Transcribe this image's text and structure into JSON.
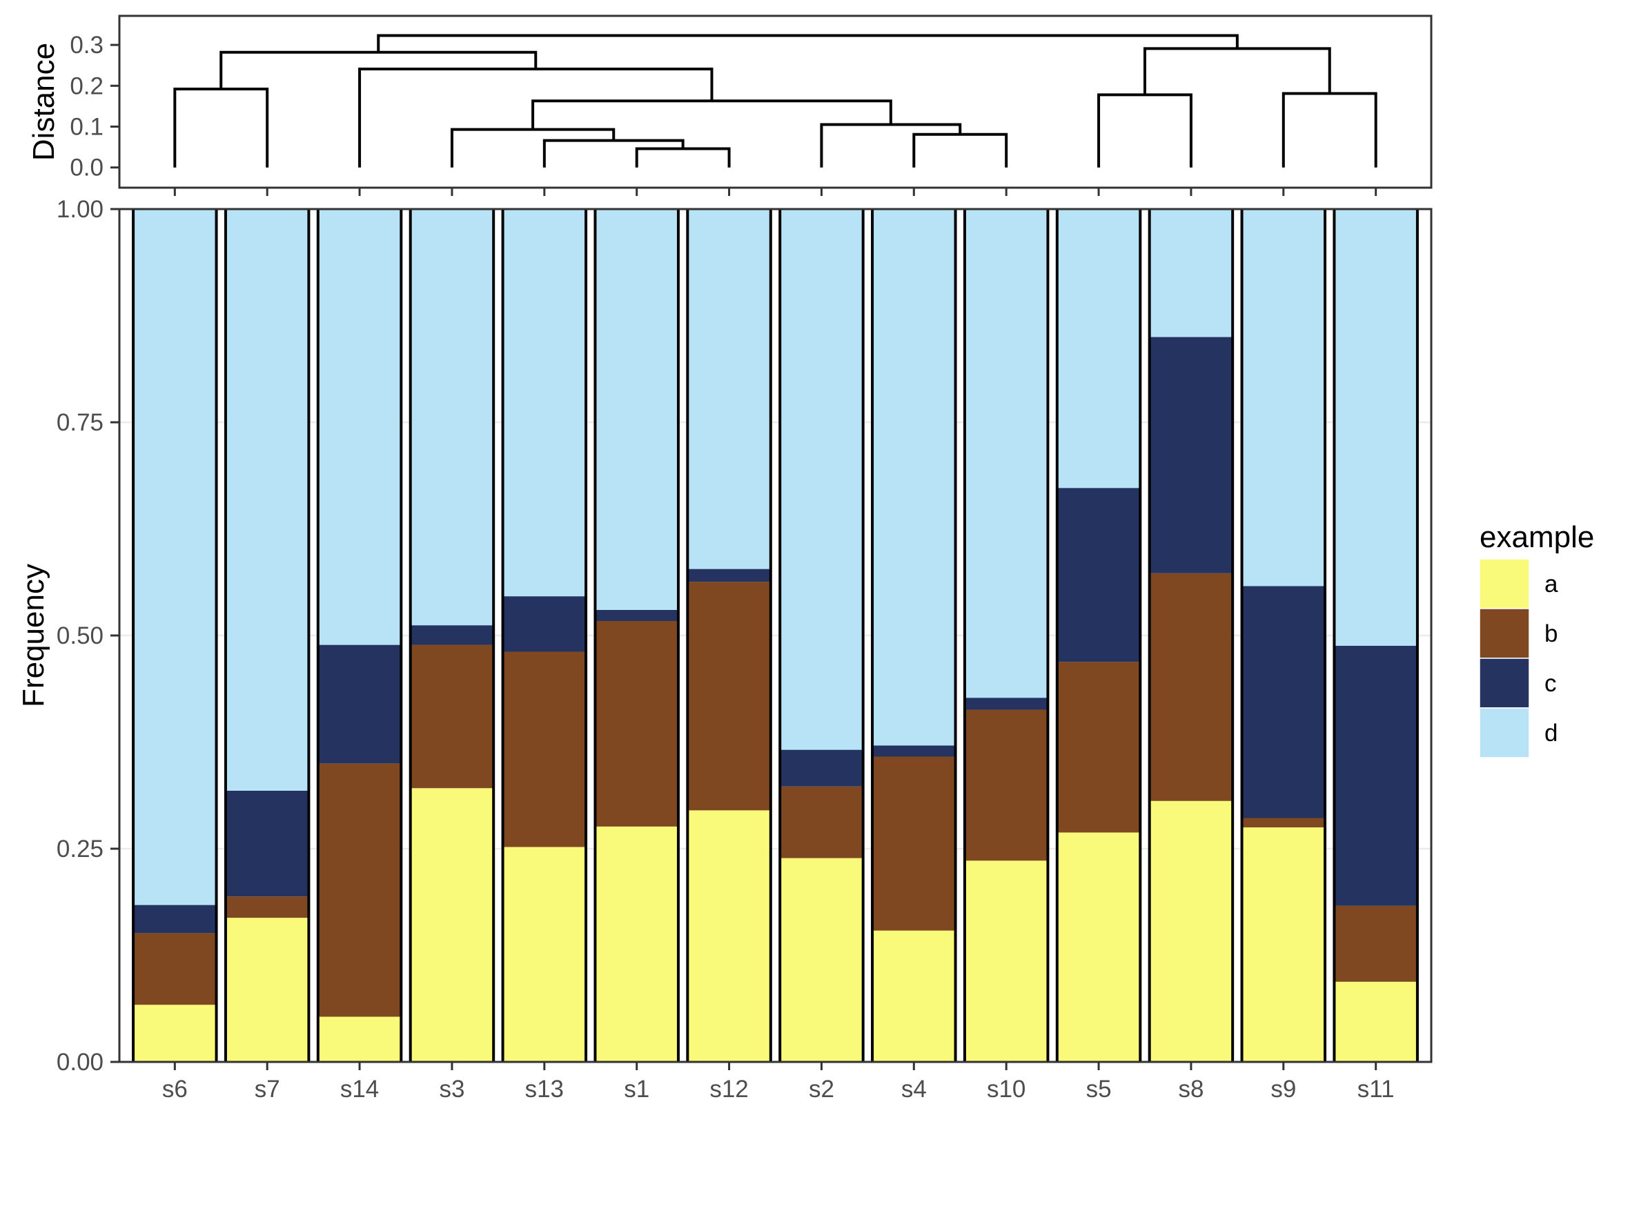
{
  "chart_data": [
    {
      "type": "dendrogram",
      "ylabel": "Distance",
      "yticks": [
        0.0,
        0.1,
        0.2,
        0.3
      ],
      "ytick_labels": [
        "0.0",
        "0.1",
        "0.2",
        "0.3"
      ],
      "ylim": [
        -0.07,
        0.365
      ],
      "leaf_order": [
        "s6",
        "s7",
        "s14",
        "s3",
        "s13",
        "s1",
        "s12",
        "s2",
        "s4",
        "s10",
        "s5",
        "s8",
        "s9",
        "s11"
      ],
      "merges": [
        {
          "left": "s1",
          "right": "s12",
          "height": 0.046
        },
        {
          "left": "s13",
          "right": "s1+s12",
          "height": 0.066
        },
        {
          "left": "s3",
          "right": "s13+s1+s12",
          "height": 0.093
        },
        {
          "left": "s4",
          "right": "s10",
          "height": 0.081
        },
        {
          "left": "s2",
          "right": "s4+s10",
          "height": 0.105
        },
        {
          "left": "s3+s13+s1+s12",
          "right": "s2+s4+s10",
          "height": 0.163
        },
        {
          "left": "s14",
          "right": "s3+s13+s1+s12+s2+s4+s10",
          "height": 0.241
        },
        {
          "left": "s6",
          "right": "s7",
          "height": 0.192
        },
        {
          "left": "s6+s7",
          "right": "s14+s3+s13+s1+s12+s2+s4+s10",
          "height": 0.282
        },
        {
          "left": "s5",
          "right": "s8",
          "height": 0.178
        },
        {
          "left": "s9",
          "right": "s11",
          "height": 0.181
        },
        {
          "left": "s5+s8",
          "right": "s9+s11",
          "height": 0.291
        },
        {
          "left": "s6+s7+s14+s3+s13+s1+s12+s2+s4+s10",
          "right": "s5+s8+s9+s11",
          "height": 0.323
        }
      ]
    },
    {
      "type": "bar",
      "stacked": true,
      "ylabel": "Frequency",
      "xlabel": "",
      "ylim": [
        0,
        1
      ],
      "yticks": [
        0,
        0.25,
        0.5,
        0.75,
        1.0
      ],
      "ytick_labels": [
        "0.00",
        "0.25",
        "0.50",
        "0.75",
        "1.00"
      ],
      "grid": true,
      "categories": [
        "s6",
        "s7",
        "s14",
        "s3",
        "s13",
        "s1",
        "s12",
        "s2",
        "s4",
        "s10",
        "s5",
        "s8",
        "s9",
        "s11"
      ],
      "series": [
        {
          "name": "a",
          "color": "#FAFA7A",
          "values": [
            0.067,
            0.169,
            0.053,
            0.321,
            0.252,
            0.276,
            0.295,
            0.239,
            0.154,
            0.236,
            0.269,
            0.306,
            0.275,
            0.094
          ]
        },
        {
          "name": "b",
          "color": "#7F4820",
          "values": [
            0.084,
            0.025,
            0.297,
            0.168,
            0.229,
            0.241,
            0.268,
            0.084,
            0.204,
            0.177,
            0.2,
            0.267,
            0.011,
            0.089
          ]
        },
        {
          "name": "c",
          "color": "#243360",
          "values": [
            0.033,
            0.124,
            0.139,
            0.023,
            0.065,
            0.013,
            0.015,
            0.043,
            0.013,
            0.014,
            0.204,
            0.277,
            0.272,
            0.305
          ]
        },
        {
          "name": "d",
          "color": "#B8E2F6",
          "values": [
            0.816,
            0.682,
            0.511,
            0.488,
            0.454,
            0.47,
            0.422,
            0.634,
            0.629,
            0.573,
            0.327,
            0.15,
            0.442,
            0.512
          ]
        }
      ],
      "legend": {
        "title": "example",
        "position": "right",
        "entries": [
          "a",
          "b",
          "c",
          "d"
        ]
      }
    }
  ]
}
